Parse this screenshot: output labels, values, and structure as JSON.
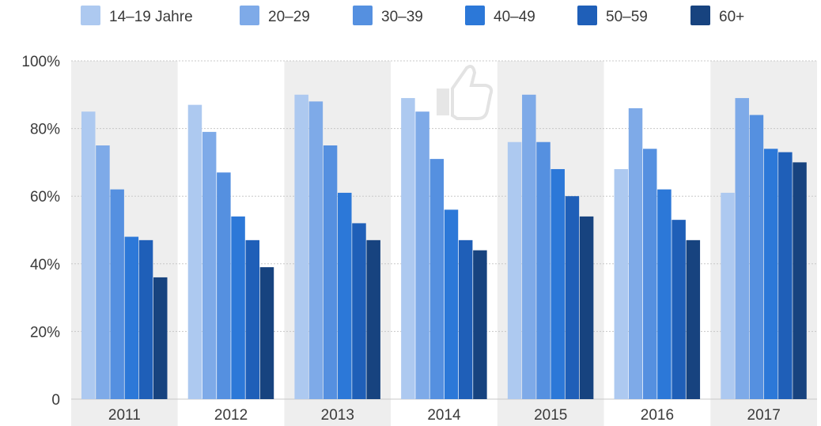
{
  "chart_data": {
    "type": "bar",
    "title": "",
    "xlabel": "",
    "ylabel": "",
    "ylim": [
      0,
      100
    ],
    "yticks": [
      "0",
      "20%",
      "40%",
      "60%",
      "80%",
      "100%"
    ],
    "ytick_values": [
      0,
      20,
      40,
      60,
      80,
      100
    ],
    "grid": true,
    "legend_position": "top",
    "categories": [
      "2011",
      "2012",
      "2013",
      "2014",
      "2015",
      "2016",
      "2017"
    ],
    "series": [
      {
        "name": "14–19 Jahre",
        "color": "#adc9f0",
        "values": [
          85,
          87,
          90,
          89,
          76,
          68,
          61
        ]
      },
      {
        "name": "20–29",
        "color": "#7eaae8",
        "values": [
          75,
          79,
          88,
          85,
          90,
          86,
          89
        ]
      },
      {
        "name": "30–39",
        "color": "#5590e0",
        "values": [
          62,
          67,
          75,
          71,
          76,
          74,
          84
        ]
      },
      {
        "name": "40–49",
        "color": "#2c78d8",
        "values": [
          48,
          54,
          61,
          56,
          68,
          62,
          74
        ]
      },
      {
        "name": "50–59",
        "color": "#1f5fb8",
        "values": [
          47,
          47,
          52,
          47,
          60,
          53,
          73
        ]
      },
      {
        "name": "60+",
        "color": "#17437f",
        "values": [
          36,
          39,
          47,
          44,
          54,
          47,
          70
        ]
      }
    ]
  },
  "watermark_icon": "thumbs-up-icon"
}
